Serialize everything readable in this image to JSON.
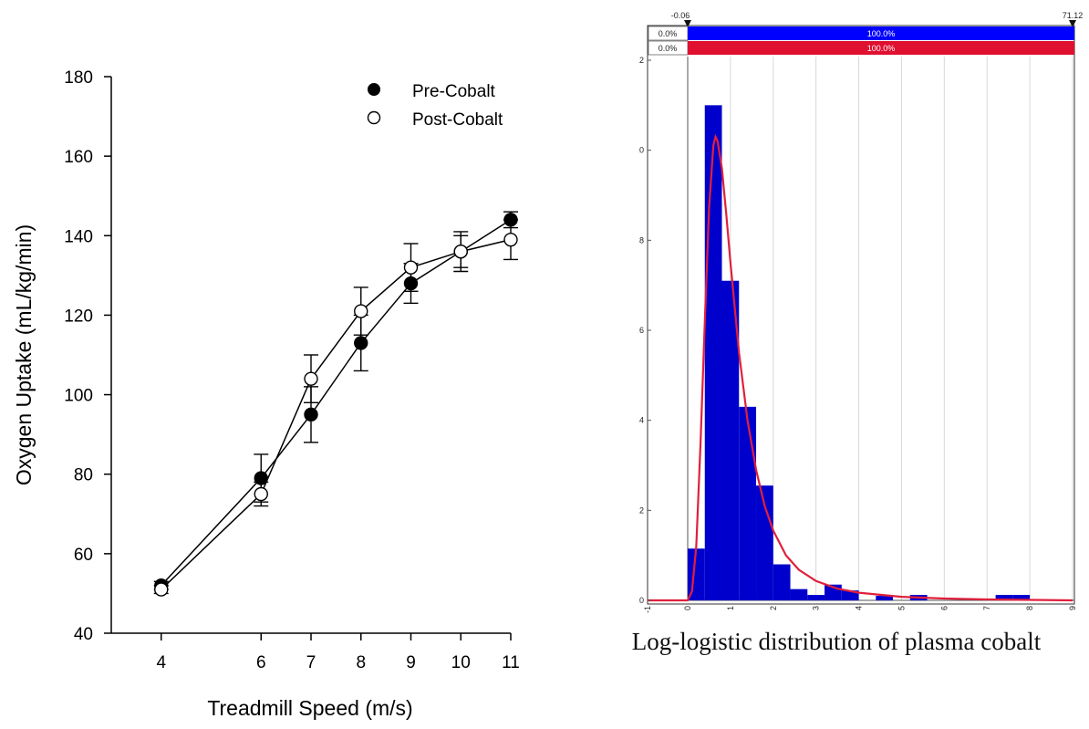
{
  "colors": {
    "axis": "#000000",
    "hist_fill": "#0000cc",
    "fit_curve": "#e0203c",
    "blue_bar": "#0000ff",
    "red_bar": "#e01030",
    "grid": "#d8d8d8",
    "label_text": "#ffffff"
  },
  "chart_data": [
    {
      "type": "line",
      "title": "",
      "xlabel": "Treadmill Speed (m/s)",
      "ylabel": "Oxygen Uptake (mL/kg/min)",
      "x": [
        4,
        6,
        7,
        8,
        9,
        10,
        11
      ],
      "x_ticks": [
        "4",
        "6",
        "7",
        "8",
        "9",
        "10",
        "11"
      ],
      "xlim": [
        3,
        11
      ],
      "ylim": [
        40,
        180
      ],
      "y_ticks": [
        "40",
        "60",
        "80",
        "100",
        "120",
        "140",
        "160",
        "180"
      ],
      "legend_position": "top-right",
      "grid": false,
      "series": [
        {
          "name": "Pre-Cobalt",
          "marker": "filled-circle",
          "values": [
            52,
            79,
            95,
            113,
            128,
            136,
            144
          ],
          "error": [
            1,
            6,
            7,
            7,
            5,
            5,
            2
          ]
        },
        {
          "name": "Post-Cobalt",
          "marker": "open-circle",
          "values": [
            51,
            75,
            104,
            121,
            132,
            136,
            139
          ],
          "error": [
            1,
            3,
            6,
            6,
            6,
            4,
            5
          ]
        }
      ]
    },
    {
      "type": "bar",
      "subtype": "histogram-with-fit",
      "title": "",
      "caption": "Log-logistic distribution of plasma cobalt",
      "xlim": [
        -1,
        9
      ],
      "x_ticks": [
        "-1",
        "0",
        "1",
        "2",
        "3",
        "4",
        "5",
        "6",
        "7",
        "8",
        "9"
      ],
      "ylim": [
        0,
        1.2
      ],
      "y_ticks": [
        "0.0",
        "0.2",
        "0.4",
        "0.6",
        "0.8",
        "1.0",
        "1.2"
      ],
      "grid": true,
      "bin_width": 0.4,
      "bins": [
        {
          "x": 0.0,
          "value": 0.115
        },
        {
          "x": 0.4,
          "value": 1.1
        },
        {
          "x": 0.8,
          "value": 0.71
        },
        {
          "x": 1.2,
          "value": 0.43
        },
        {
          "x": 1.6,
          "value": 0.255
        },
        {
          "x": 2.0,
          "value": 0.08
        },
        {
          "x": 2.4,
          "value": 0.025
        },
        {
          "x": 2.8,
          "value": 0.012
        },
        {
          "x": 3.2,
          "value": 0.035
        },
        {
          "x": 3.6,
          "value": 0.022
        },
        {
          "x": 4.4,
          "value": 0.01
        },
        {
          "x": 5.2,
          "value": 0.012
        },
        {
          "x": 7.2,
          "value": 0.012
        },
        {
          "x": 7.6,
          "value": 0.012
        }
      ],
      "fit_curve": {
        "name": "Log-logistic",
        "peak": 1.03,
        "mode_x": 0.65,
        "points": [
          [
            -1,
            0
          ],
          [
            -0.3,
            0
          ],
          [
            0,
            0
          ],
          [
            0.1,
            0.02
          ],
          [
            0.2,
            0.12
          ],
          [
            0.3,
            0.35
          ],
          [
            0.4,
            0.62
          ],
          [
            0.5,
            0.87
          ],
          [
            0.6,
            1.01
          ],
          [
            0.65,
            1.03
          ],
          [
            0.7,
            1.02
          ],
          [
            0.8,
            0.96
          ],
          [
            0.9,
            0.86
          ],
          [
            1.0,
            0.75
          ],
          [
            1.2,
            0.55
          ],
          [
            1.4,
            0.4
          ],
          [
            1.6,
            0.29
          ],
          [
            1.8,
            0.21
          ],
          [
            2.0,
            0.155
          ],
          [
            2.3,
            0.1
          ],
          [
            2.6,
            0.068
          ],
          [
            3.0,
            0.043
          ],
          [
            3.5,
            0.026
          ],
          [
            4.0,
            0.017
          ],
          [
            5.0,
            0.008
          ],
          [
            6.0,
            0.004
          ],
          [
            7.0,
            0.002
          ],
          [
            8.0,
            0.001
          ],
          [
            9.0,
            0.0
          ]
        ]
      },
      "top_range": {
        "left_value": "-0.06",
        "right_value": "71.12"
      },
      "top_bars": [
        {
          "left_pct": "0.0%",
          "center_pct": "100.0%",
          "color": "#0000ff"
        },
        {
          "left_pct": "0.0%",
          "center_pct": "100.0%",
          "color": "#e01030"
        }
      ]
    }
  ]
}
